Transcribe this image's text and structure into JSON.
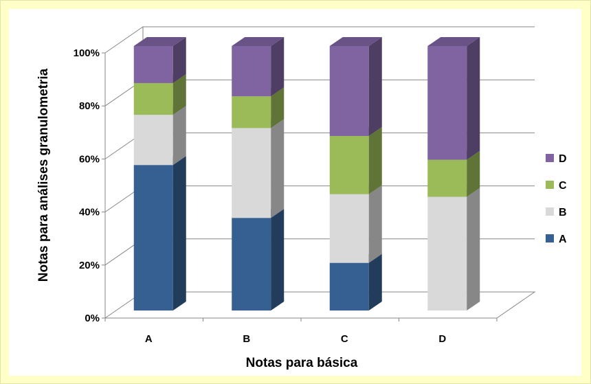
{
  "chart_data": {
    "type": "bar",
    "stacked": true,
    "percent": true,
    "three_d": true,
    "categories": [
      "A",
      "B",
      "C",
      "D"
    ],
    "series": [
      {
        "name": "A",
        "values": [
          55,
          35,
          18,
          0
        ],
        "color": "#376092"
      },
      {
        "name": "B",
        "values": [
          19,
          34,
          26,
          43
        ],
        "color": "#d9d9d9"
      },
      {
        "name": "C",
        "values": [
          12,
          12,
          22,
          14
        ],
        "color": "#9bbb59"
      },
      {
        "name": "D",
        "values": [
          14,
          19,
          34,
          43
        ],
        "color": "#8064a2"
      }
    ],
    "xlabel": "Notas para básica",
    "ylabel": "Notas para análises granulometria",
    "yticks": [
      "0%",
      "20%",
      "40%",
      "60%",
      "80%",
      "100%"
    ],
    "ylim": [
      0,
      100
    ],
    "grid": true,
    "legend": "right"
  },
  "colors": {
    "background": "#ffffc8",
    "plot_background": "#ffffff",
    "grid": "#868686"
  }
}
